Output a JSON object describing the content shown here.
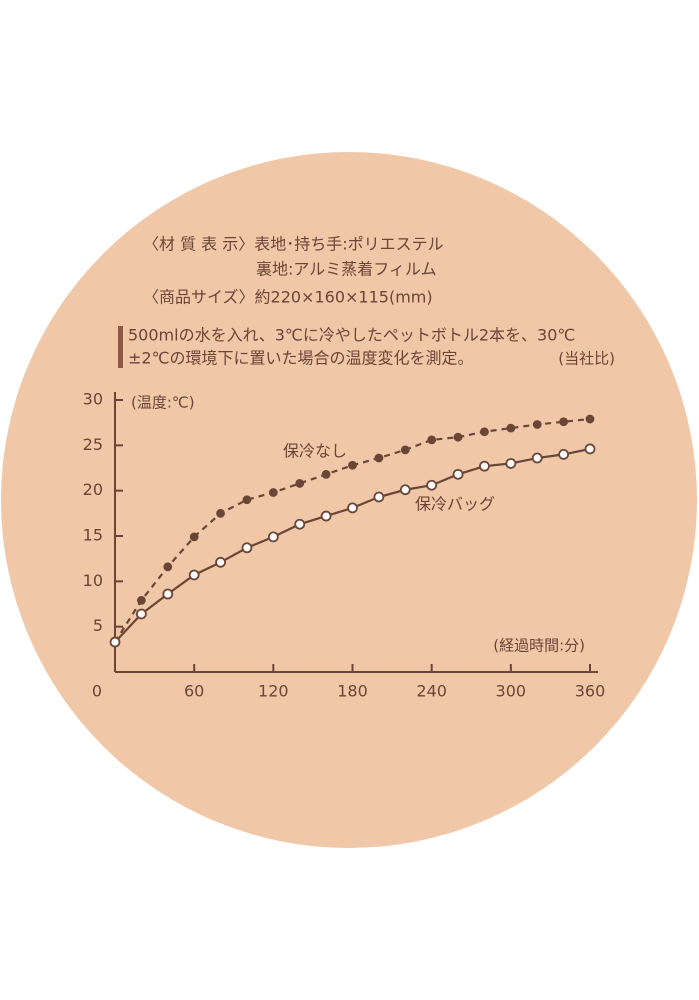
{
  "chart_data": {
    "type": "line",
    "header_lines": [
      "〈材 質 表 示〉表地･持ち手:ポリエステル",
      "裏地:アルミ蒸着フィルム",
      "〈商品サイズ〉約220×160×115(mm)"
    ],
    "note_lines": [
      "500mlの水を入れ、3℃に冷やしたペットボトル2本を、30℃",
      "±2℃の環境下に置いた場合の温度変化を測定。"
    ],
    "note_source": "(当社比)",
    "y_label": "(温度:℃)",
    "x_label": "(経過時間:分)",
    "x": [
      0,
      20,
      40,
      60,
      80,
      100,
      120,
      140,
      160,
      180,
      200,
      220,
      240,
      260,
      280,
      300,
      320,
      340,
      360
    ],
    "series": [
      {
        "name": "保冷なし",
        "color": "#6b4536",
        "dashed": true,
        "marker": "filled",
        "values": [
          3.3,
          7.9,
          11.6,
          14.9,
          17.5,
          19,
          19.8,
          20.8,
          21.8,
          22.8,
          23.6,
          24.5,
          25.6,
          25.9,
          26.5,
          26.9,
          27.3,
          27.6,
          27.9
        ]
      },
      {
        "name": "保冷バッグ",
        "color": "#6b4536",
        "dashed": false,
        "marker": "open",
        "values": [
          3.3,
          6.4,
          8.6,
          10.7,
          12.1,
          13.7,
          14.9,
          16.3,
          17.2,
          18.1,
          19.3,
          20.1,
          20.6,
          21.8,
          22.7,
          23,
          23.6,
          24,
          24.6
        ]
      }
    ],
    "xlim": [
      0,
      360
    ],
    "ylim": [
      0,
      30
    ],
    "xticks": [
      0,
      60,
      120,
      180,
      240,
      300,
      360
    ],
    "yticks": [
      5,
      10,
      15,
      20,
      25,
      30
    ]
  }
}
